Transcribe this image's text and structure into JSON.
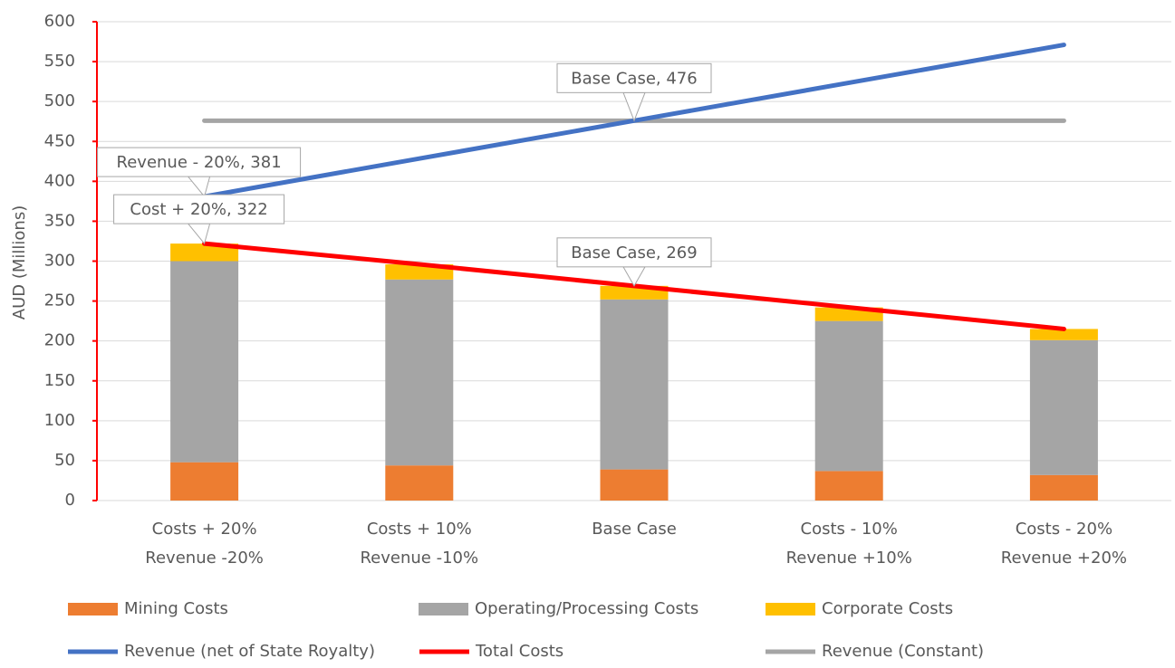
{
  "chart_data": {
    "type": "combo",
    "y_label": "AUD (Millions)",
    "categories": [
      "Costs + 20%\nRevenue -20%",
      "Costs + 10%\nRevenue -10%",
      "Base Case",
      "Costs - 10%\nRevenue +10%",
      "Costs - 20%\nRevenue +20%"
    ],
    "ylim": [
      0,
      600
    ],
    "yticks": [
      0,
      50,
      100,
      150,
      200,
      250,
      300,
      350,
      400,
      450,
      500,
      550,
      600
    ],
    "grid": true,
    "legend": "bottom",
    "series": [
      {
        "name": "Mining Costs",
        "kind": "bar",
        "color": "#ed7d31",
        "values": [
          48,
          44,
          39,
          37,
          32
        ]
      },
      {
        "name": "Operating/Processing Costs",
        "kind": "bar",
        "color": "#a5a5a5",
        "values": [
          252,
          233,
          213,
          188,
          169
        ]
      },
      {
        "name": "Corporate Costs",
        "kind": "bar",
        "color": "#ffc000",
        "values": [
          22,
          19,
          17,
          17,
          14
        ]
      },
      {
        "name": "Revenue (net of State Royalty)",
        "kind": "line",
        "color": "#4472c4",
        "values": [
          381,
          428.5,
          476,
          523.5,
          571
        ],
        "value_labels": [
          "Revenue - 20%, 381",
          null,
          "Base Case, 476",
          null,
          null
        ]
      },
      {
        "name": "Total Costs",
        "kind": "line",
        "color": "#ff0000",
        "values": [
          322,
          296,
          269,
          242,
          215
        ],
        "value_labels": [
          "Cost + 20%, 322",
          null,
          "Base Case, 269",
          null,
          null
        ]
      },
      {
        "name": "Revenue (Constant)",
        "kind": "line",
        "color": "#a5a5a5",
        "values": [
          476,
          476,
          476,
          476,
          476
        ]
      }
    ]
  }
}
